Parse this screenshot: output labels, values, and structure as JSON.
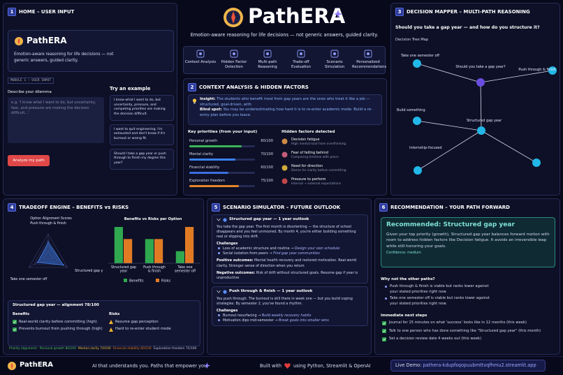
{
  "header": {
    "title": "PathERA",
    "subtitle": "Emotion-aware reasoning for life decisions — not generic answers, guided clarity.",
    "features": [
      "Context Analysis",
      "Hidden Factor Detection",
      "Multi-path Reasoning",
      "Trade-off Evaluation",
      "Scenario Simulation",
      "Personalized Recommendations"
    ]
  },
  "panel1": {
    "number": "1",
    "heading": "HOME – USER INPUT",
    "app_title": "PathERA",
    "app_subtitle": "Emotion-aware reasoning for life decisions — not generic answers, guided clarity.",
    "module_label": "MODULE 1 — USER INPUT",
    "input_label": "Describe your dilemma",
    "input_placeholder": "e.g. 'I know what I want to do, but uncertainty, fear, and pressure are making the decision difficult...'",
    "button": "Analyze my path",
    "examples_title": "Try an example",
    "examples": [
      "I know what I want to do, but uncertainty, pressure, and competing priorities are making the decision difficult.",
      "I want to quit engineering. I'm exhausted and don't know if it's burnout or wrong fit.",
      "Should I take a gap year or push through to finish my degree this year?"
    ]
  },
  "panel2": {
    "number": "2",
    "heading": "CONTEXT ANALYSIS & HIDDEN FACTORS",
    "insight_label": "Insight:",
    "insight": "The students who benefit most from gap years are the ones who treat it like a job — structured, goal-driven, with",
    "blind_spot_label": "Blind spot:",
    "blind_spot": "You may be underestimating how hard it is to re-enter academic mode. Build a re-entry plan before you leave.",
    "hidden_title": "Hidden factors detected",
    "hidden_factors": [
      {
        "name": "Decision fatigue",
        "detail": "High mental load from overthinking"
      },
      {
        "name": "Fear of falling behind",
        "detail": "Comparing timeline with peers"
      },
      {
        "name": "Need for direction",
        "detail": "Desire for clarity before committing"
      },
      {
        "name": "Pressure to perform",
        "detail": "Internal + external expectations"
      }
    ]
  },
  "panel3": {
    "number": "3",
    "heading": "DECISION MAPPER – MULTI-PATH REASONING",
    "question": "Should you take a gap year — and how do you structure it?",
    "map_title": "Decision Tree Map",
    "nodes": [
      {
        "label": "Take one semester off"
      },
      {
        "label": "Should you take a gap year?"
      },
      {
        "label": "Push through & finish"
      },
      {
        "label": "Build something"
      },
      {
        "label": "Structured gap year"
      },
      {
        "label": "Internship-focused"
      },
      {
        "label": null
      }
    ]
  },
  "panel4": {
    "number": "4",
    "heading": "TRADEOFF ENGINE – BENEFITS vs RISKS",
    "detail": {
      "title": "Structured gap year — alignment 78/100",
      "benefits_title": "Benefits",
      "benefits": [
        "Real-world clarity before committing (high)",
        "Prevents burnout from pushing through (high)"
      ],
      "risks_title": "Risks",
      "risks": [
        "Resume gap perception",
        "Hard to re-enter student mode"
      ],
      "alignment_label": "Priority alignment:"
    }
  },
  "panel5": {
    "number": "5",
    "heading": "SCENARIO SIMULATOR – FUTURE OUTLOOK",
    "scenarios": [
      {
        "title": "Structured gap year — 1 year outlook",
        "narrative": "You take the gap year. The first month is disorienting — the structure of school disappears and you feel unmoored. By month 4, you're either building something real or slipping into drift.",
        "challenges_title": "Challenges",
        "challenges": [
          {
            "text": "Loss of academic structure and routine →",
            "action": "Design your own schedule"
          },
          {
            "text": "Social isolation from peers →",
            "action": "Find gap year communities"
          }
        ],
        "positive_label": "Positive outcomes:",
        "positive": "Mental health recovery and restored motivation. Real-world clarity. Stronger sense of direction when you return",
        "negative_label": "Negative outcomes:",
        "negative": "Risk of drift without structured goals. Resume gap if year is unproductive"
      },
      {
        "title": "Push through & finish — 1 year outlook",
        "narrative": "You push through. The burnout is still there in week one — but you build coping strategies. By semester 2, you've found a rhythm.",
        "challenges_title": "Challenges",
        "challenges": [
          {
            "text": "Burnout resurfacing →",
            "action": "Build weekly recovery habits"
          },
          {
            "text": "Motivation dips mid-semester →",
            "action": "Break goals into smaller wins"
          }
        ]
      }
    ]
  },
  "panel6": {
    "number": "6",
    "heading": "RECOMMENDATION – YOUR PATH FORWARD",
    "recommendation": "Recommended: Structured gap year",
    "rationale": "Given your top priority (growth), Structured gap year balances forward motion with room to address hidden factors like Decision fatigue. It avoids an irreversible leap while still honoring your goals.",
    "confidence": "Confidence: medium",
    "why_title": "Why not the other paths?",
    "why": [
      "Push through & finish is viable but ranks lower against your stated priorities right now.",
      "Take one semester off is viable but ranks lower against your stated priorities right now."
    ],
    "steps_title": "Immediate next steps",
    "steps": [
      "Journal for 15 minutes on what 'success' looks like in 12 months (this week)",
      "Talk to one person who has done something like \"Structured gap year\" (this month)",
      "Set a decision review date 4 weeks out (this week)"
    ]
  },
  "chart_data": [
    {
      "type": "hbar",
      "title": "Key priorities (from your input)",
      "categories": [
        "Personal growth",
        "Mental clarity",
        "Financial stability",
        "Exploration freedom"
      ],
      "values": [
        80,
        70,
        60,
        75
      ],
      "value_labels": [
        "80/100",
        "70/100",
        "60/100",
        "75/100"
      ],
      "colors": [
        "#3cb55a",
        "#3b82f6",
        "#3b6fe0",
        "#e5862b"
      ],
      "xlim": [
        0,
        100
      ]
    },
    {
      "type": "radar",
      "title": "Option Alignment Scores",
      "categories": [
        "Push through & finish",
        "Structured gap year",
        "Take one semester off"
      ],
      "values": [
        62,
        78,
        55
      ],
      "color": "#3b6fd1",
      "rlim": [
        0,
        100
      ]
    },
    {
      "type": "bar",
      "title": "Benefits vs Risks per Option",
      "categories": [
        "Structured gap year",
        "Push through & finish",
        "Take one semester off"
      ],
      "series": [
        {
          "name": "Benefits",
          "color": "#2fa84f",
          "values": [
            3,
            2,
            1
          ]
        },
        {
          "name": "Risks",
          "color": "#e07b24",
          "values": [
            2,
            2,
            3
          ]
        }
      ],
      "ylim": [
        0,
        3
      ]
    }
  ],
  "footer": {
    "brand": "PathERA",
    "tagline": "AI that understands you. Paths that empower you.",
    "built_prefix": "Built with",
    "built_suffix": "using Python, Streamlit & OpenAI",
    "demo_label": "Live Demo:",
    "demo_url": "pathera-kdupfsqopuubmttvqfhmu2.streamlit.app"
  }
}
